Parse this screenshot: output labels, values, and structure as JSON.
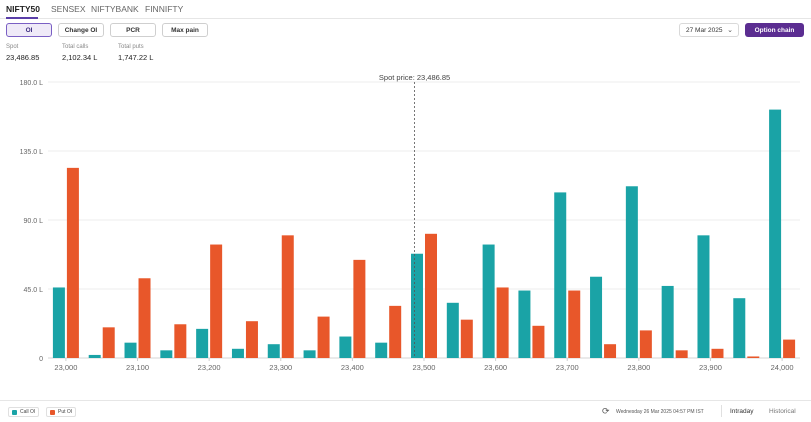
{
  "tabs": [
    {
      "label": "NIFTY50",
      "active": true
    },
    {
      "label": "SENSEX",
      "active": false
    },
    {
      "label": "NIFTYBANK",
      "active": false
    },
    {
      "label": "FINNIFTY",
      "active": false
    }
  ],
  "segments": [
    {
      "label": "OI",
      "active": true
    },
    {
      "label": "Change OI",
      "active": false
    },
    {
      "label": "PCR",
      "active": false
    },
    {
      "label": "Max pain",
      "active": false
    }
  ],
  "expiry": {
    "value": "27 Mar 2025",
    "icon": "chevron-down-icon"
  },
  "option_chain_label": "Option chain",
  "stats": {
    "spot": {
      "label": "Spot",
      "value": "23,486.85"
    },
    "total_calls": {
      "label": "Total calls",
      "value": "2,102.34 L"
    },
    "total_puts": {
      "label": "Total puts",
      "value": "1,747.22 L"
    }
  },
  "colors": {
    "call": "#1aa3a6",
    "put": "#e8572a",
    "accent": "#5b2d91"
  },
  "chart_data": {
    "type": "bar",
    "categories": [
      "23,000",
      "23,050",
      "23,100",
      "23,150",
      "23,200",
      "23,250",
      "23,300",
      "23,350",
      "23,400",
      "23,450",
      "23,500",
      "23,550",
      "23,600",
      "23,650",
      "23,700",
      "23,750",
      "23,800",
      "23,850",
      "23,900",
      "23,950",
      "24,000"
    ],
    "x_tick_labels": [
      "23,000",
      "23,100",
      "23,200",
      "23,300",
      "23,400",
      "23,500",
      "23,600",
      "23,700",
      "23,800",
      "23,900",
      "24,000"
    ],
    "series": [
      {
        "name": "Call OI",
        "color": "#1aa3a6",
        "values": [
          46,
          2,
          10,
          5,
          19,
          6,
          9,
          5,
          14,
          10,
          68,
          36,
          74,
          44,
          108,
          53,
          112,
          47,
          80,
          39,
          162
        ]
      },
      {
        "name": "Put OI",
        "color": "#e8572a",
        "values": [
          124,
          20,
          52,
          22,
          74,
          24,
          80,
          27,
          64,
          34,
          81,
          25,
          46,
          21,
          44,
          9,
          18,
          5,
          6,
          1,
          12
        ]
      }
    ],
    "y_ticks": [
      "0",
      "45.0 L",
      "90.0 L",
      "135.0 L",
      "180.0 L"
    ],
    "ylim": [
      0,
      180
    ],
    "spot_price": {
      "label": "Spot price: 23,486.85",
      "value": 23486.85
    },
    "grid": true,
    "legend_placement": "bottom-left"
  },
  "footer": {
    "updated": "Wednesday 26 Mar 2025 04:57 PM IST",
    "modes": [
      {
        "label": "Intraday",
        "active": true
      },
      {
        "label": "Historical",
        "active": false
      }
    ]
  }
}
